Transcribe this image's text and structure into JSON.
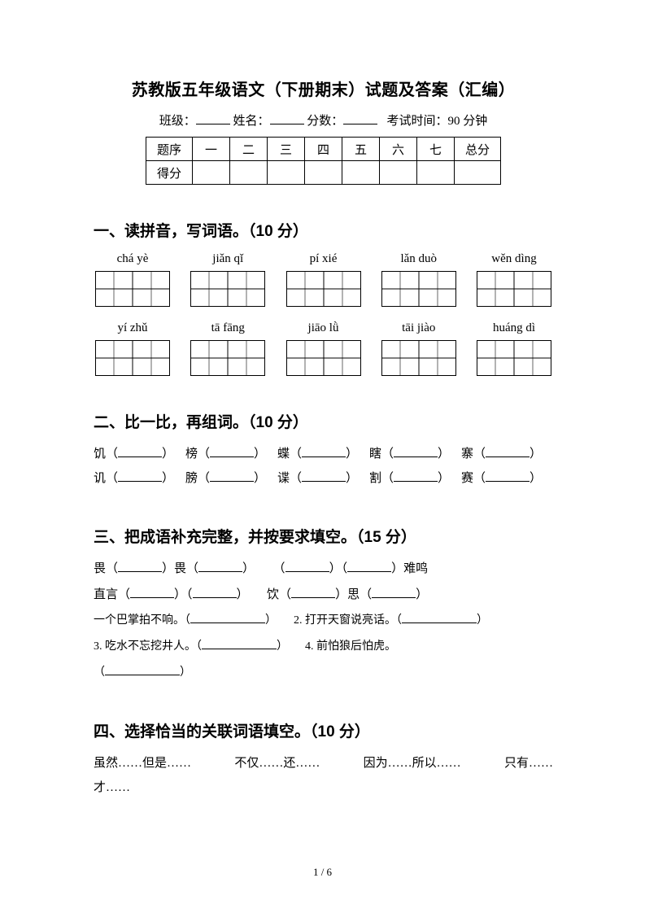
{
  "title": "苏教版五年级语文（下册期末）试题及答案（汇编）",
  "info": {
    "class": "班级：",
    "name": "姓名：",
    "score": "分数：",
    "time": "考试时间：90 分钟"
  },
  "score_table": {
    "row1_label": "题序",
    "nums": [
      "一",
      "二",
      "三",
      "四",
      "五",
      "六",
      "七"
    ],
    "total": "总分",
    "row2_label": "得分"
  },
  "sections": {
    "s1": {
      "title": "一、读拼音，写词语。（10 分）",
      "rows": [
        [
          "chá yè",
          "jiǎn qǐ",
          "pí xié",
          "lǎn duò",
          "wěn dìng"
        ],
        [
          "yí zhǔ",
          "tā fāng",
          "jiāo lǜ",
          "tāi jiào",
          "huáng dì"
        ]
      ]
    },
    "s2": {
      "title": "二、比一比，再组词。（10 分）",
      "rows": [
        [
          "饥",
          "榜",
          "蝶",
          "瞎",
          "寨"
        ],
        [
          "讥",
          "膀",
          "谍",
          "割",
          "赛"
        ]
      ]
    },
    "s3": {
      "title": "三、把成语补充完整，并按要求填空。（15 分）",
      "line1a": "畏（",
      "line1b": "）畏（",
      "line1c": "）",
      "line1d": "（",
      "line1e": "）（",
      "line1f": "）难鸣",
      "line2a": "直言（",
      "line2b": "）（",
      "line2c": "）",
      "line2d": "饮（",
      "line2e": "）思（",
      "line2f": "）",
      "n1": "一个巴掌拍不响。（",
      "n1b": "）",
      "n2": "2. 打开天窗说亮话。（",
      "n2b": "）",
      "n3": "3. 吃水不忘挖井人。（",
      "n3b": "）",
      "n4": "4. 前怕狼后怕虎。",
      "n4b": "（",
      "n4c": "）"
    },
    "s4": {
      "title": "四、选择恰当的关联词语填空。（10 分）",
      "words": [
        "虽然……但是……",
        "不仅……还……",
        "因为……所以……",
        "只有……"
      ],
      "last": "才……"
    }
  },
  "footer": "1 / 6",
  "colors": {
    "text": "#000",
    "bg": "#fff"
  }
}
